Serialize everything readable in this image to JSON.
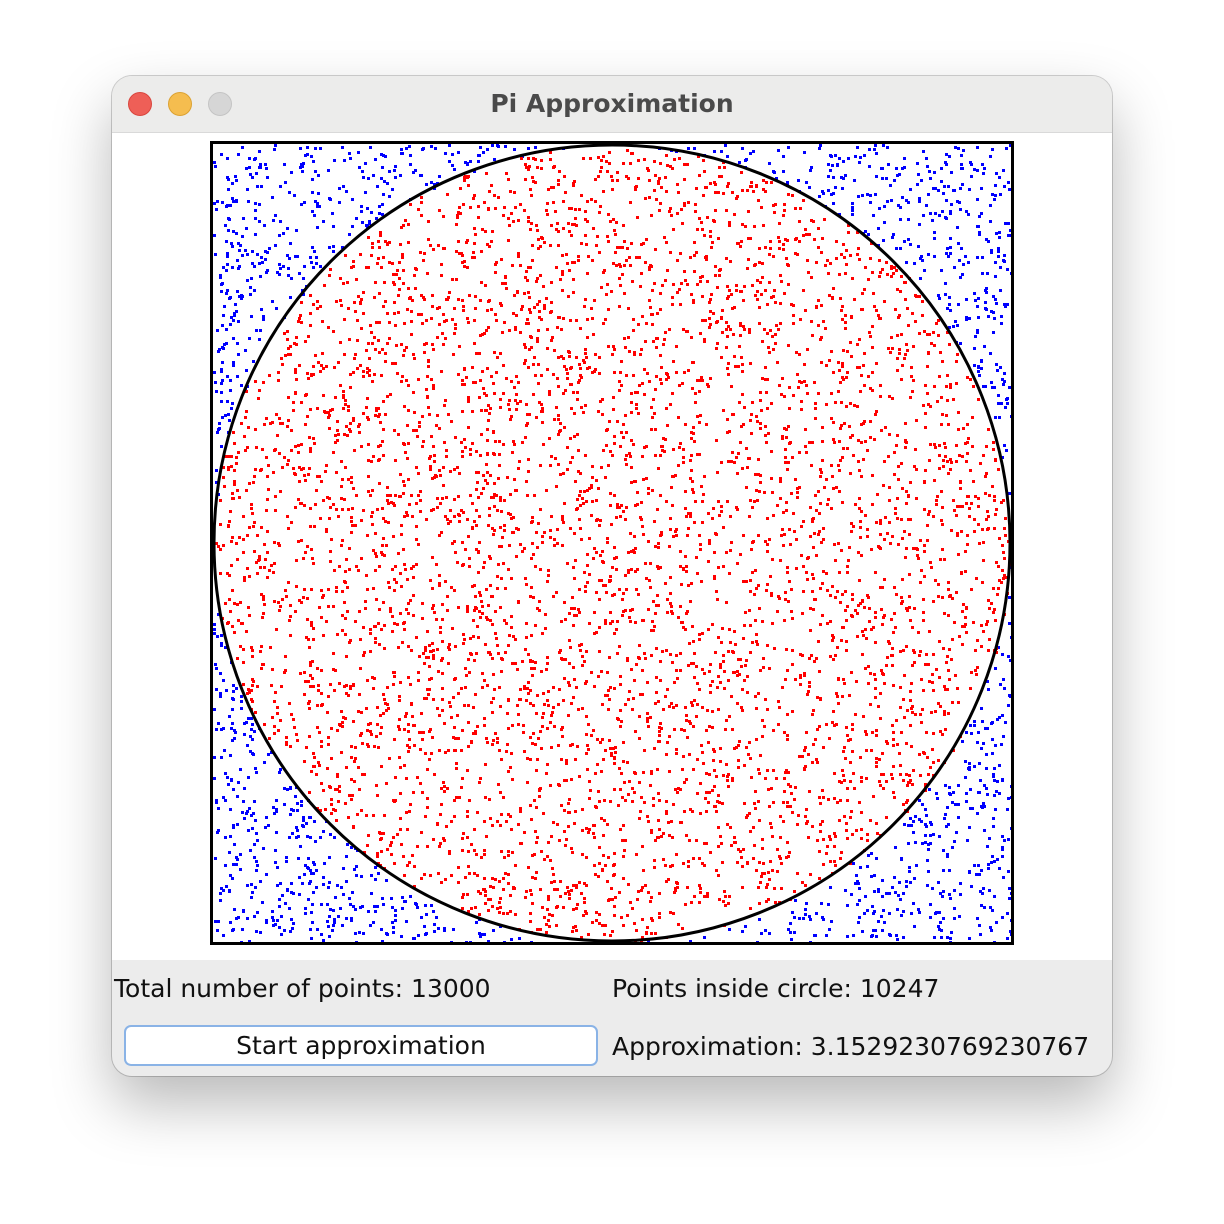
{
  "window": {
    "title": "Pi Approximation",
    "buttons": [
      "close-icon",
      "minimize-icon",
      "zoom-icon"
    ]
  },
  "simulation": {
    "inside_color": "#ff0000",
    "outside_color": "#0000ff",
    "boundary_color": "#000000"
  },
  "stats": {
    "total_label": "Total number of points: 13000",
    "inside_label": "Points inside circle: 10247",
    "approx_label": "Approximation: 3.1529230769230767"
  },
  "controls": {
    "start_label": "Start approximation"
  }
}
